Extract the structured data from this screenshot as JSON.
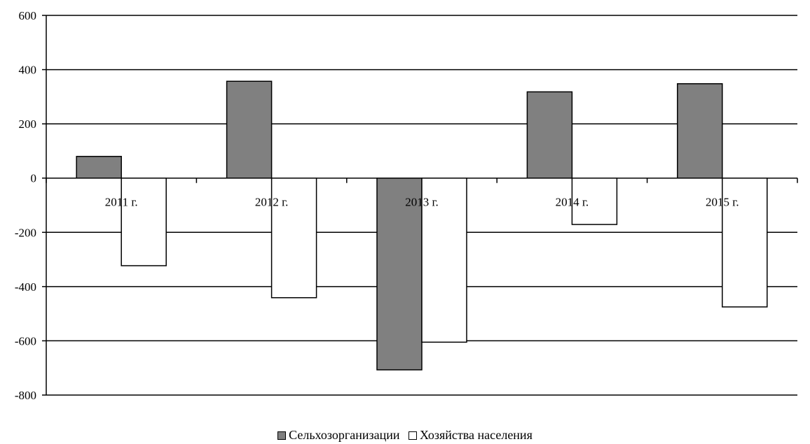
{
  "chart_data": {
    "type": "bar",
    "categories": [
      "2011 г.",
      "2012 г.",
      "2013 г.",
      "2014 г.",
      "2015 г."
    ],
    "series": [
      {
        "name": "Сельхозорганизации",
        "values": [
          80,
          357,
          -707,
          318,
          348
        ],
        "color": "#808080"
      },
      {
        "name": "Хозяйства населения",
        "values": [
          -323,
          -441,
          -605,
          -171,
          -475
        ],
        "color": "#ffffff"
      }
    ],
    "ylim": [
      -800,
      600
    ],
    "yticks": [
      600,
      400,
      200,
      0,
      -200,
      -400,
      -600,
      -800
    ],
    "grid": true,
    "legend_position": "bottom"
  }
}
